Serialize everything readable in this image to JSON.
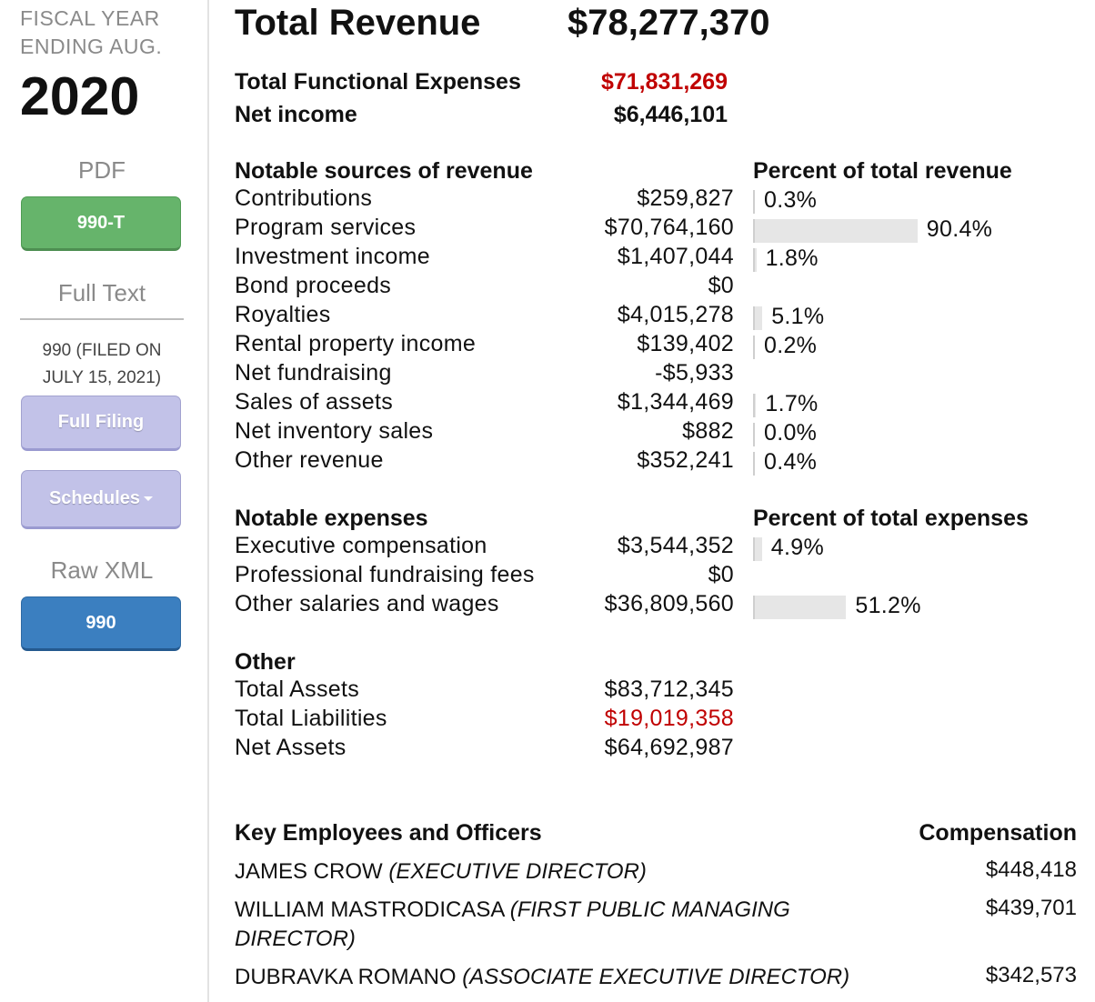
{
  "sidebar": {
    "fiscal_year_line1": "FISCAL YEAR",
    "fiscal_year_line2": "ENDING AUG.",
    "year": "2020",
    "pdf_label": "PDF",
    "pdf_button": "990-T",
    "full_text_label": "Full Text",
    "filed_line1": "990 (FILED ON",
    "filed_line2": "JULY 15, 2021)",
    "full_filing_button": "Full Filing",
    "schedules_button": "Schedules",
    "raw_xml_label": "Raw XML",
    "xml_button": "990"
  },
  "summary": {
    "total_revenue_label": "Total Revenue",
    "total_revenue_value": "$78,277,370",
    "functional_expenses_label": "Total Functional Expenses",
    "functional_expenses_value": "$71,831,269",
    "net_income_label": "Net income",
    "net_income_value": "$6,446,101"
  },
  "revenue": {
    "heading": "Notable sources of revenue",
    "percent_heading": "Percent of total revenue",
    "rows": [
      {
        "label": "Contributions",
        "amount": "$259,827",
        "percent": "0.3%",
        "fraction": 0.003
      },
      {
        "label": "Program services",
        "amount": "$70,764,160",
        "percent": "90.4%",
        "fraction": 0.904
      },
      {
        "label": "Investment income",
        "amount": "$1,407,044",
        "percent": "1.8%",
        "fraction": 0.018
      },
      {
        "label": "Bond proceeds",
        "amount": "$0",
        "percent": "",
        "fraction": null
      },
      {
        "label": "Royalties",
        "amount": "$4,015,278",
        "percent": "5.1%",
        "fraction": 0.051
      },
      {
        "label": "Rental property income",
        "amount": "$139,402",
        "percent": "0.2%",
        "fraction": 0.002
      },
      {
        "label": "Net fundraising",
        "amount": "-$5,933",
        "percent": "",
        "fraction": null
      },
      {
        "label": "Sales of assets",
        "amount": "$1,344,469",
        "percent": "1.7%",
        "fraction": 0.017
      },
      {
        "label": "Net inventory sales",
        "amount": "$882",
        "percent": "0.0%",
        "fraction": 0.0
      },
      {
        "label": "Other revenue",
        "amount": "$352,241",
        "percent": "0.4%",
        "fraction": 0.004
      }
    ]
  },
  "expenses": {
    "heading": "Notable expenses",
    "percent_heading": "Percent of total expenses",
    "rows": [
      {
        "label": "Executive compensation",
        "amount": "$3,544,352",
        "percent": "4.9%",
        "fraction": 0.049
      },
      {
        "label": "Professional fundraising fees",
        "amount": "$0",
        "percent": "",
        "fraction": null
      },
      {
        "label": "Other salaries and wages",
        "amount": "$36,809,560",
        "percent": "51.2%",
        "fraction": 0.512
      }
    ]
  },
  "other": {
    "heading": "Other",
    "rows": [
      {
        "label": "Total Assets",
        "amount": "$83,712,345",
        "highlight": false
      },
      {
        "label": "Total Liabilities",
        "amount": "$19,019,358",
        "highlight": true
      },
      {
        "label": "Net Assets",
        "amount": "$64,692,987",
        "highlight": false
      }
    ]
  },
  "employees": {
    "heading": "Key Employees and Officers",
    "comp_heading": "Compensation",
    "rows": [
      {
        "name": "JAMES CROW",
        "role": "(EXECUTIVE DIRECTOR)",
        "comp": "$448,418"
      },
      {
        "name": "WILLIAM MASTRODICASA",
        "role": "(FIRST PUBLIC MANAGING DIRECTOR)",
        "comp": "$439,701"
      },
      {
        "name": "DUBRAVKA ROMANO",
        "role": "(ASSOCIATE EXECUTIVE DIRECTOR)",
        "comp": "$342,573"
      }
    ]
  },
  "colors": {
    "negative": "#c00000",
    "pdf_button": "#66b46b",
    "filing_button": "#c2c2e8",
    "xml_button": "#3b7fc0",
    "bar": "#e6e6e6"
  }
}
